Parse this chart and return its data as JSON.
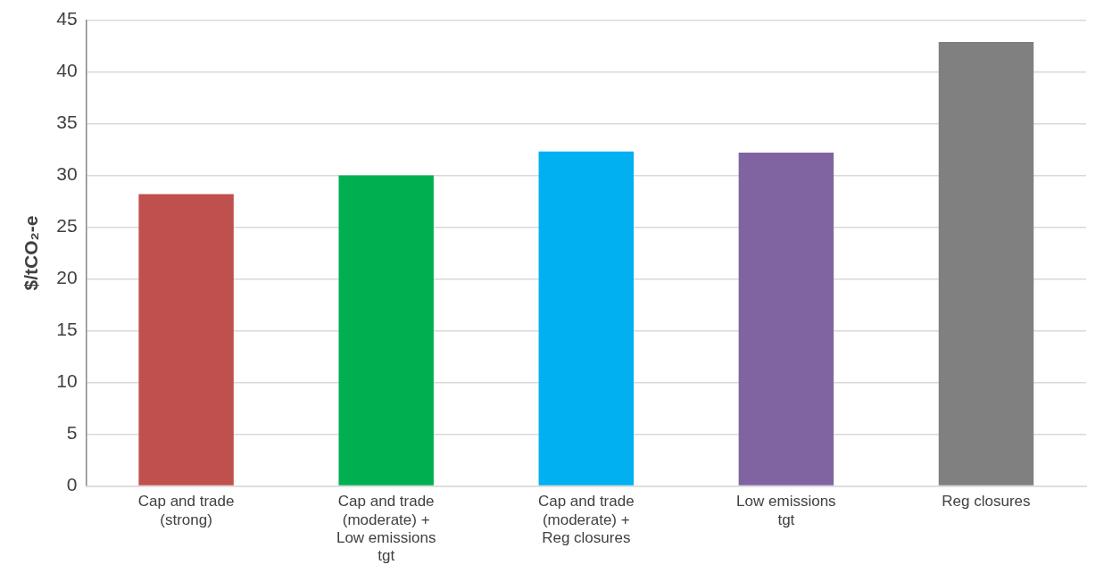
{
  "chart_data": {
    "type": "bar",
    "ylabel": "$/tCO₂-e",
    "categories": [
      "Cap and trade (strong)",
      "Cap and trade (moderate) + Low emissions tgt",
      "Cap and trade (moderate) + Reg closures",
      "Low emissions tgt",
      "Reg closures"
    ],
    "values": [
      28.2,
      30,
      32.3,
      32.2,
      42.9
    ],
    "colors": [
      "#c0504d",
      "#00b050",
      "#00b0f0",
      "#8064a2",
      "#808080"
    ],
    "ylim": [
      0,
      45
    ],
    "yticks": [
      0,
      5,
      10,
      15,
      20,
      25,
      30,
      35,
      40,
      45
    ],
    "grid": "y",
    "legend": false
  }
}
